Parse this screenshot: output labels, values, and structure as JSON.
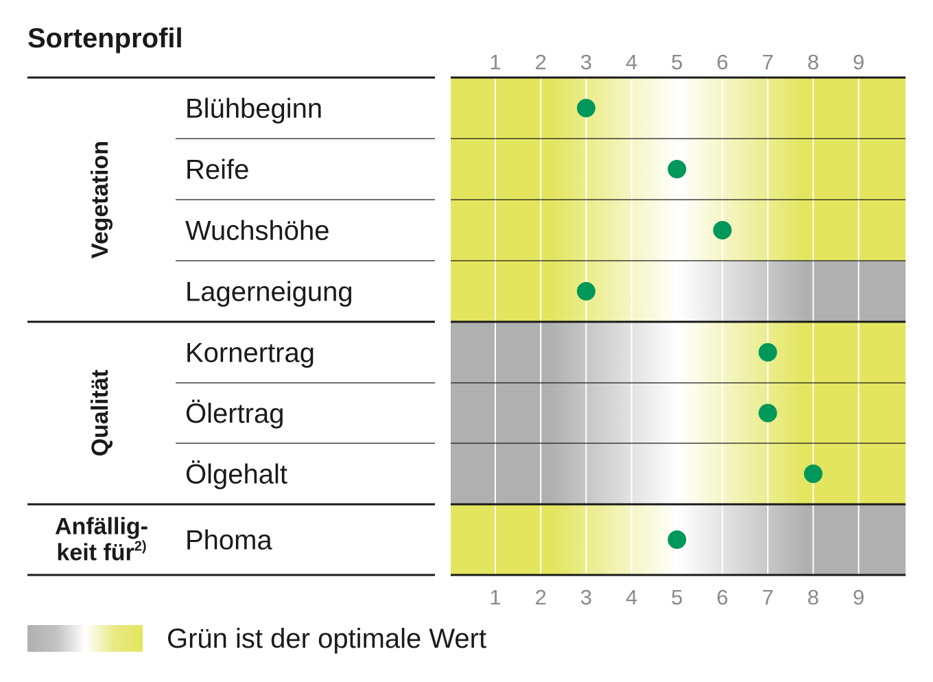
{
  "chart_data": {
    "type": "scatter",
    "title": "Sortenprofil",
    "x_ticks": [
      "1",
      "2",
      "3",
      "4",
      "5",
      "6",
      "7",
      "8",
      "9"
    ],
    "xlim": [
      1,
      9
    ],
    "groups": [
      {
        "label": "Vegetation",
        "rows": [
          0,
          1,
          2,
          3
        ]
      },
      {
        "label": "Qualität",
        "rows": [
          4,
          5,
          6
        ]
      },
      {
        "label_lines": [
          "Anfällig-",
          "keit für"
        ],
        "superscript": "2)",
        "rows": [
          7
        ]
      }
    ],
    "rows": [
      {
        "label": "Blühbeginn",
        "value": 3,
        "optimum": "ends"
      },
      {
        "label": "Reife",
        "value": 5,
        "optimum": "ends"
      },
      {
        "label": "Wuchshöhe",
        "value": 6,
        "optimum": "ends"
      },
      {
        "label": "Lagerneigung",
        "value": 3,
        "optimum": "low"
      },
      {
        "label": "Kornertrag",
        "value": 7,
        "optimum": "high"
      },
      {
        "label": "Ölertrag",
        "value": 7,
        "optimum": "high"
      },
      {
        "label": "Ölgehalt",
        "value": 8,
        "optimum": "high"
      },
      {
        "label": "Phoma",
        "value": 5,
        "optimum": "low"
      }
    ],
    "legend": {
      "text": "Grün ist der optimale Wert"
    },
    "colors": {
      "green": "#e3e55e",
      "gray": "#b0b0b0",
      "white": "#ffffff",
      "dot": "#00975a"
    }
  }
}
